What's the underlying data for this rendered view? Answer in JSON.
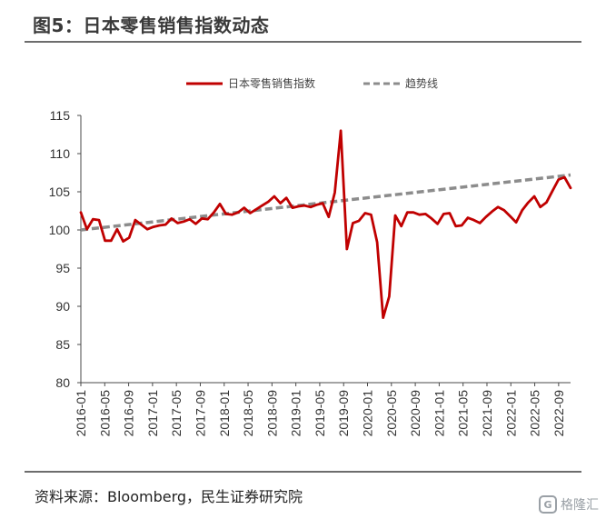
{
  "header": {
    "title": "图5：日本零售销售指数动态"
  },
  "footer": {
    "source": "资料来源：Bloomberg，民生证券研究院",
    "watermark": "格隆汇",
    "watermark_logo": "G"
  },
  "colors": {
    "index": "#c00000",
    "trend": "#8c8c8c",
    "axis": "#4a4a4a",
    "rule": "#6d6d6d"
  },
  "chart_data": {
    "type": "line",
    "title": "",
    "xlabel": "",
    "ylabel": "",
    "ylim": [
      80,
      115
    ],
    "yticks": [
      80,
      85,
      90,
      95,
      100,
      105,
      110,
      115
    ],
    "grid": false,
    "legend_position": "top",
    "x_start": "2016-01",
    "x_end": "2022-11",
    "xtick_labels": [
      "2016-01",
      "2016-05",
      "2016-09",
      "2017-01",
      "2017-05",
      "2017-09",
      "2018-01",
      "2018-05",
      "2018-09",
      "2019-01",
      "2019-05",
      "2019-09",
      "2020-01",
      "2020-05",
      "2020-09",
      "2021-01",
      "2021-05",
      "2021-09",
      "2022-01",
      "2022-05",
      "2022-09"
    ],
    "series": [
      {
        "name": "日本零售销售指数",
        "style": "solid",
        "values": [
          102.3,
          100.1,
          101.4,
          101.3,
          98.6,
          98.6,
          100.1,
          98.5,
          99.0,
          101.3,
          100.7,
          100.1,
          100.4,
          100.6,
          100.7,
          101.5,
          100.9,
          101.1,
          101.4,
          100.8,
          101.5,
          101.4,
          102.3,
          103.4,
          102.1,
          102.0,
          102.3,
          102.9,
          102.2,
          102.7,
          103.2,
          103.7,
          104.4,
          103.5,
          104.2,
          102.9,
          103.1,
          103.2,
          103.0,
          103.3,
          103.5,
          101.7,
          104.9,
          113.0,
          97.5,
          100.9,
          101.2,
          102.2,
          102.0,
          98.4,
          88.5,
          91.3,
          101.9,
          100.5,
          102.3,
          102.3,
          102.0,
          102.1,
          101.5,
          100.8,
          102.1,
          102.2,
          100.5,
          100.6,
          101.6,
          101.3,
          100.9,
          101.7,
          102.4,
          103.0,
          102.6,
          101.8,
          101.0,
          102.6,
          103.6,
          104.4,
          103.0,
          103.6,
          105.1,
          106.6,
          106.9,
          105.5
        ]
      },
      {
        "name": "趋势线",
        "style": "dashed",
        "values": [
          100.0,
          107.2
        ]
      }
    ]
  }
}
